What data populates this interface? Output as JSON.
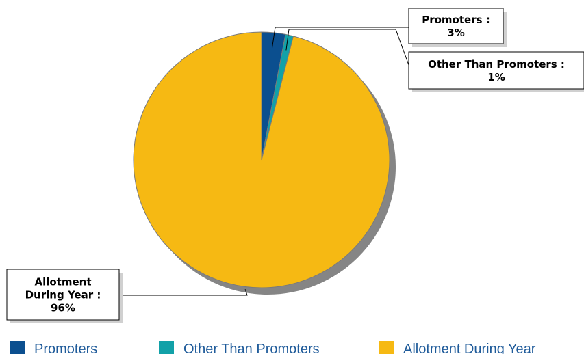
{
  "chart_data": {
    "type": "pie",
    "categories": [
      "Promoters",
      "Other Than Promoters",
      "Allotment During Year"
    ],
    "values": [
      3,
      1,
      96
    ],
    "colors": [
      "#0b4f8f",
      "#12a1a8",
      "#f6b913"
    ],
    "labels": [
      [
        "Promoters :",
        "3%"
      ],
      [
        "Other Than Promoters :",
        "1%"
      ],
      [
        "Allotment",
        "During Year :",
        "96%"
      ]
    ],
    "legend": {
      "position": "bottom",
      "items": [
        "Promoters",
        "Other Than Promoters",
        "Allotment During Year"
      ],
      "text_color": "#1f5b9a"
    }
  }
}
